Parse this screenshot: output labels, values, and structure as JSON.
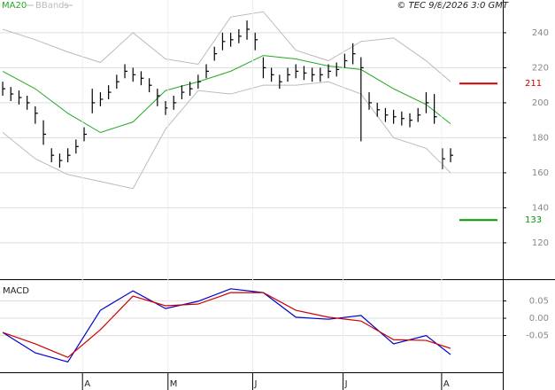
{
  "chart_data": [
    {
      "type": "ohlc",
      "legend": [
        "MA20",
        "BBands"
      ],
      "credit": "© TEC 9/8/2026 3:0 GMT",
      "xlim": [
        -0.33,
        61.41
      ],
      "ylim": [
        99.2,
        258.7
      ],
      "yticks": [
        120,
        140,
        160,
        180,
        200,
        220,
        240
      ],
      "grid": true,
      "bars": {
        "color": "#000000",
        "high": [
          212,
          209,
          207,
          204,
          198,
          190,
          174,
          171,
          174,
          179,
          186,
          208,
          206,
          210,
          216,
          222,
          220,
          218,
          214,
          208,
          201,
          204,
          210,
          212,
          216,
          222,
          232,
          240,
          240,
          242,
          247,
          240,
          226,
          220,
          216,
          220,
          222,
          221,
          220,
          220,
          222,
          223,
          228,
          234,
          226,
          206,
          200,
          197,
          196,
          195,
          194,
          197,
          206,
          205,
          174,
          174
        ],
        "low": [
          204,
          201,
          199,
          196,
          188,
          176,
          166,
          163,
          166,
          171,
          178,
          194,
          198,
          202,
          208,
          214,
          212,
          210,
          206,
          198,
          193,
          196,
          202,
          204,
          208,
          214,
          224,
          230,
          232,
          234,
          236,
          230,
          214,
          212,
          208,
          212,
          214,
          213,
          212,
          212,
          214,
          215,
          220,
          222,
          178,
          196,
          192,
          189,
          188,
          187,
          186,
          189,
          194,
          188,
          162,
          166
        ],
        "close": [
          208,
          205,
          203,
          200,
          194,
          182,
          170,
          167,
          170,
          175,
          182,
          200,
          202,
          206,
          212,
          218,
          216,
          214,
          210,
          204,
          197,
          200,
          206,
          208,
          212,
          218,
          228,
          235,
          236,
          238,
          242,
          236,
          220,
          216,
          212,
          216,
          218,
          217,
          216,
          216,
          218,
          219,
          224,
          228,
          220,
          200,
          196,
          193,
          192,
          191,
          190,
          193,
          200,
          192,
          168,
          170
        ]
      },
      "series": [
        {
          "name": "MA20",
          "color": "#22aa22",
          "x": [
            0,
            4,
            8,
            12,
            16,
            20,
            24,
            28,
            32,
            36,
            40,
            44,
            48,
            52,
            55
          ],
          "values": [
            218,
            208,
            194,
            183,
            189,
            207,
            212,
            218,
            227,
            225,
            221,
            219,
            208,
            199,
            188
          ]
        },
        {
          "name": "BBands",
          "color": "#bbbbbb",
          "x": [
            0,
            4,
            8,
            12,
            16,
            20,
            24,
            28,
            32,
            36,
            40,
            44,
            48,
            52,
            55
          ],
          "upper": [
            242,
            236,
            229,
            223,
            240,
            225,
            222,
            249,
            252,
            230,
            224,
            235,
            237,
            224,
            212
          ],
          "lower": [
            183,
            168,
            159,
            155,
            151,
            185,
            207,
            205,
            210,
            210,
            212,
            205,
            180,
            174,
            160
          ]
        }
      ],
      "levels": [
        {
          "value": 211,
          "color": "#cc0000"
        },
        {
          "value": 133,
          "color": "#009900"
        }
      ]
    },
    {
      "type": "line",
      "title": "MACD",
      "xlim": [
        -0.33,
        61.41
      ],
      "ylim": [
        -0.156,
        0.105
      ],
      "yticks": [
        {
          "value": 0.05,
          "label": "0.05"
        },
        {
          "value": 0,
          "label": "0.00"
        },
        {
          "value": -0.05,
          "label": "-0.05"
        }
      ],
      "grid": true,
      "xticks": [
        {
          "value": 9.8,
          "label": "A"
        },
        {
          "value": 20.3,
          "label": "M"
        },
        {
          "value": 30.7,
          "label": "J"
        },
        {
          "value": 41.8,
          "label": "J"
        },
        {
          "value": 53.9,
          "label": "A"
        }
      ],
      "series": [
        {
          "color": "#0000cc",
          "x": [
            0,
            4,
            8,
            12,
            16,
            20,
            24,
            28,
            32,
            36,
            40,
            44,
            48,
            52,
            55
          ],
          "values": [
            -0.041,
            -0.1,
            -0.126,
            0.023,
            0.079,
            0.028,
            0.049,
            0.085,
            0.074,
            0.003,
            -0.003,
            0.008,
            -0.074,
            -0.05,
            -0.105
          ]
        },
        {
          "color": "#cc0000",
          "x": [
            0,
            4,
            8,
            12,
            16,
            20,
            24,
            28,
            32,
            36,
            40,
            44,
            48,
            52,
            55
          ],
          "values": [
            -0.041,
            -0.074,
            -0.113,
            -0.033,
            0.064,
            0.036,
            0.041,
            0.074,
            0.074,
            0.023,
            0.003,
            -0.008,
            -0.062,
            -0.064,
            -0.087
          ]
        }
      ]
    }
  ]
}
